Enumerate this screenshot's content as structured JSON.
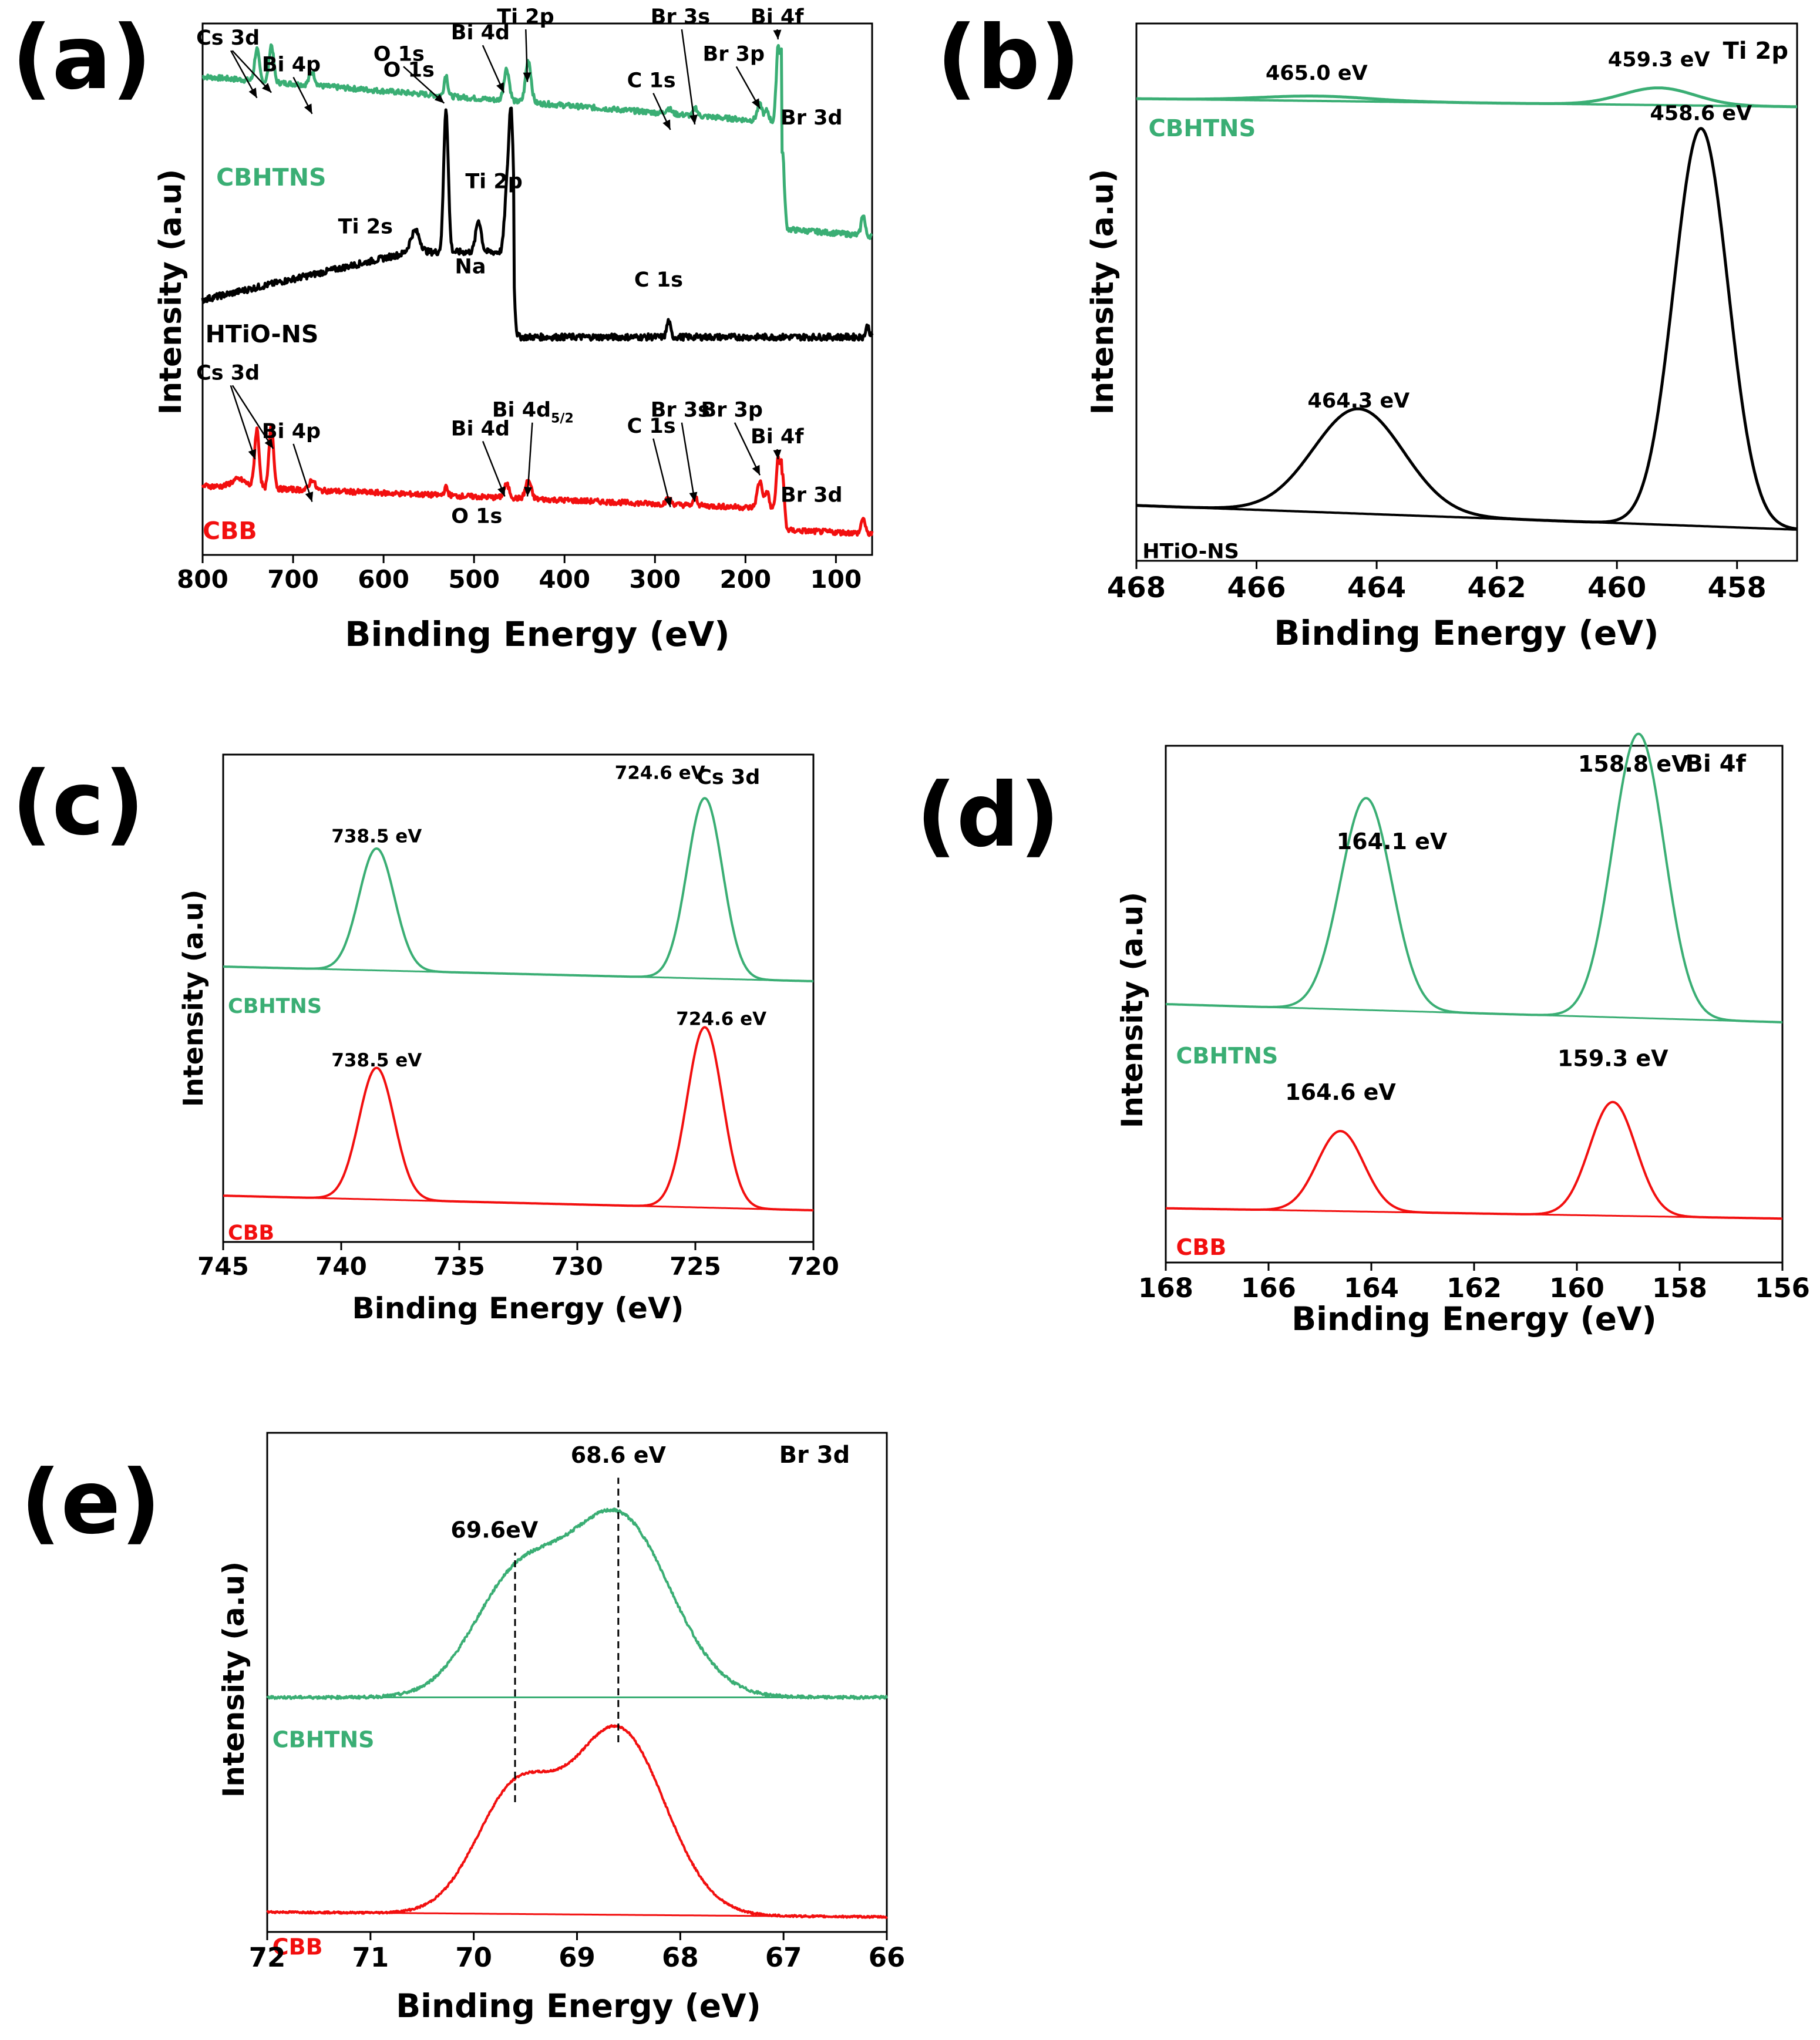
{
  "colors": {
    "cbhtns": "#3aae74",
    "htio": "#000000",
    "cbb": "#f20f0f",
    "axis": "#000000"
  },
  "chart_data": [
    {
      "panel": "(a)",
      "type": "line",
      "xlabel": "Binding Energy (eV)",
      "ylabel": "Intensity (a.u)",
      "xlim": [
        800,
        60
      ],
      "ylim": [
        0,
        100
      ],
      "xticks": [
        800,
        700,
        600,
        500,
        400,
        300,
        200,
        100
      ],
      "series": [
        {
          "name": "CBHTNS",
          "color": "#3aae74",
          "baseline": 80,
          "slope": 10,
          "noise": 0.5,
          "peaks": [
            [
              740,
              6,
              2.5
            ],
            [
              724,
              7,
              2.5
            ],
            [
              679,
              2.5,
              3
            ],
            [
              531,
              4,
              2
            ],
            [
              464,
              6,
              3
            ],
            [
              440,
              8,
              3
            ],
            [
              285,
              1,
              3
            ],
            [
              255,
              1.5,
              2
            ],
            [
              184,
              3,
              3
            ],
            [
              176,
              2,
              2
            ],
            [
              164,
              14,
              2
            ],
            [
              159,
              14,
              2
            ],
            [
              70,
              4,
              2
            ]
          ],
          "step": [
            160,
            20
          ]
        },
        {
          "name": "HTiO-NS",
          "color": "#000000",
          "baseline": 48,
          "slope": 0,
          "noise": 0.6,
          "ramp": [
            800,
            48,
            570,
            57
          ],
          "peaks": [
            [
              565,
              4,
              5
            ],
            [
              531,
              27,
              2.5
            ],
            [
              495,
              6,
              3
            ],
            [
              464,
              10,
              2.5
            ],
            [
              459,
              26,
              2.5
            ],
            [
              285,
              3,
              2
            ],
            [
              65,
              2,
              2
            ]
          ],
          "step": [
            456,
            16
          ]
        },
        {
          "name": "CBB",
          "color": "#f20f0f",
          "baseline": 8,
          "slope": 5,
          "noise": 0.5,
          "peaks": [
            [
              760,
              1.5,
              8
            ],
            [
              740,
              11,
              2.5
            ],
            [
              724,
              12,
              2.5
            ],
            [
              679,
              2,
              3
            ],
            [
              531,
              1.5,
              2
            ],
            [
              464,
              2.5,
              3
            ],
            [
              440,
              3.5,
              3
            ],
            [
              285,
              1,
              3
            ],
            [
              255,
              1.5,
              2
            ],
            [
              184,
              5,
              3
            ],
            [
              176,
              3,
              2
            ],
            [
              164,
              9,
              2
            ],
            [
              159,
              10,
              2
            ],
            [
              70,
              3,
              2
            ]
          ],
          "step": [
            160,
            4
          ]
        }
      ],
      "text_labels": [
        {
          "text": "CBHTNS",
          "x": 785,
          "y": 69.5,
          "color": "#3aae74",
          "size": 41
        },
        {
          "text": "HTiO-NS",
          "x": 797,
          "y": 40,
          "color": "#000000",
          "size": 41
        },
        {
          "text": "CBB",
          "x": 800,
          "y": 3,
          "color": "#f20f0f",
          "size": 41
        },
        {
          "text": "O 1s",
          "x": 572,
          "y": 90,
          "color": "#000000",
          "size": 35
        },
        {
          "text": "Ti 2s",
          "x": 620,
          "y": 60.5,
          "color": "#000000",
          "size": 35
        },
        {
          "text": "Na",
          "x": 504,
          "y": 53,
          "color": "#000000",
          "size": 35
        },
        {
          "text": "Ti 2p",
          "x": 478,
          "y": 69,
          "color": "#000000",
          "size": 35
        },
        {
          "text": "C 1s",
          "x": 296,
          "y": 50.5,
          "color": "#000000",
          "size": 35
        },
        {
          "text": "O 1s",
          "x": 497,
          "y": 6,
          "color": "#000000",
          "size": 35
        }
      ],
      "arrow_labels": [
        {
          "text": "Cs 3d",
          "tx": 772,
          "ty": 96,
          "points": [
            [
              740,
              86
            ],
            [
              724,
              87
            ]
          ]
        },
        {
          "text": "Bi 4p",
          "tx": 702,
          "ty": 91,
          "points": [
            [
              679,
              83
            ]
          ]
        },
        {
          "text": "O 1s",
          "tx": 583,
          "ty": 93,
          "points": [
            [
              533,
              85
            ]
          ]
        },
        {
          "text": "Bi 4d",
          "tx": 493,
          "ty": 97,
          "points": [
            [
              467,
              87
            ]
          ]
        },
        {
          "text": "Ti 2p",
          "tx": 443,
          "ty": 100,
          "points": [
            [
              441,
              89
            ]
          ]
        },
        {
          "text": "C 1s",
          "tx": 304,
          "ty": 88,
          "points": [
            [
              283,
              80
            ]
          ]
        },
        {
          "text": "Br 3s",
          "tx": 272,
          "ty": 100,
          "points": [
            [
              256,
              81
            ]
          ]
        },
        {
          "text": "Br 3p",
          "tx": 213,
          "ty": 93,
          "points": [
            [
              184,
              84
            ]
          ]
        },
        {
          "text": "Bi 4f",
          "tx": 165,
          "ty": 100,
          "points": [
            [
              164,
              97
            ]
          ]
        },
        {
          "text": "Br 3d",
          "tx": 127,
          "ty": 81,
          "points": []
        },
        {
          "text": "Cs 3d",
          "tx": 772,
          "ty": 33,
          "points": [
            [
              742,
              18
            ],
            [
              722,
              20
            ]
          ]
        },
        {
          "text": "Bi 4p",
          "tx": 702,
          "ty": 22,
          "points": [
            [
              679,
              10
            ]
          ]
        },
        {
          "text": "Bi 4d",
          "tx": 493,
          "ty": 22.5,
          "points": [
            [
              466,
              11
            ]
          ]
        },
        {
          "text": "Bi 4d",
          "tx": 435,
          "ty": 26,
          "sub": "5/2",
          "points": [
            [
              441,
              11
            ]
          ]
        },
        {
          "text": "C 1s",
          "tx": 304,
          "ty": 23,
          "points": [
            [
              283,
              9
            ]
          ]
        },
        {
          "text": "Br 3s",
          "tx": 272,
          "ty": 26,
          "points": [
            [
              256,
              10
            ]
          ]
        },
        {
          "text": "Br 3p",
          "tx": 215,
          "ty": 26,
          "points": [
            [
              184,
              15
            ]
          ]
        },
        {
          "text": "Bi 4f",
          "tx": 165,
          "ty": 21,
          "points": [
            [
              164,
              18
            ]
          ]
        },
        {
          "text": "Br 3d",
          "tx": 127,
          "ty": 10,
          "points": []
        }
      ]
    },
    {
      "panel": "(b)",
      "type": "line",
      "title": "Ti 2p",
      "xlabel": "Binding Energy (eV)",
      "ylabel": "Intensity (a.u)",
      "xlim": [
        468,
        457
      ],
      "ylim": [
        0,
        100
      ],
      "xticks": [
        468,
        466,
        464,
        462,
        460,
        458
      ],
      "series": [
        {
          "name": "CBHTNS",
          "color": "#3aae74",
          "baseline": 84.5,
          "slope": 1.5,
          "peaks": [
            [
              465.0,
              0.9,
              0.9
            ],
            [
              459.3,
              3.2,
              0.6
            ]
          ]
        },
        {
          "name": "HTiO-NS",
          "color": "#000000",
          "baseline": 5.8,
          "slope": 4.5,
          "peaks": [
            [
              464.3,
              19.5,
              0.75
            ],
            [
              458.6,
              74,
              0.45
            ]
          ]
        }
      ],
      "text_labels": [
        {
          "text": "CBHTNS",
          "x": 467.8,
          "y": 79,
          "color": "#3aae74",
          "size": 40
        },
        {
          "text": "HTiO-NS",
          "x": 467.9,
          "y": 0.5,
          "color": "#000000",
          "size": 35
        },
        {
          "text": "465.0 eV",
          "x": 465.0,
          "y": 89.5,
          "color": "#000000",
          "size": 35
        },
        {
          "text": "459.3 eV",
          "x": 459.3,
          "y": 92,
          "color": "#000000",
          "size": 35
        },
        {
          "text": "458.6 eV",
          "x": 458.6,
          "y": 82,
          "color": "#000000",
          "size": 35
        },
        {
          "text": "464.3 eV",
          "x": 464.3,
          "y": 28.5,
          "color": "#000000",
          "size": 35
        }
      ]
    },
    {
      "panel": "(c)",
      "type": "line",
      "title": "Cs 3d",
      "xlabel": "Binding Energy (eV)",
      "ylabel": "Intensity (a.u)",
      "xlim": [
        745,
        720
      ],
      "ylim": [
        0,
        100
      ],
      "xticks": [
        745,
        740,
        735,
        730,
        725,
        720
      ],
      "series": [
        {
          "name": "CBHTNS",
          "color": "#3aae74",
          "baseline": 53.5,
          "slope": 3,
          "peaks": [
            [
              738.5,
              25,
              0.75
            ],
            [
              724.6,
              37,
              0.75
            ]
          ]
        },
        {
          "name": "CBB",
          "color": "#f20f0f",
          "baseline": 6.5,
          "slope": 3,
          "peaks": [
            [
              738.5,
              27,
              0.75
            ],
            [
              724.6,
              37,
              0.75
            ]
          ]
        }
      ],
      "text_labels": [
        {
          "text": "CBHTNS",
          "x": 744.8,
          "y": 47,
          "color": "#3aae74",
          "size": 35
        },
        {
          "text": "CBB",
          "x": 744.8,
          "y": 0.5,
          "color": "#f20f0f",
          "size": 35
        },
        {
          "text": "Cs 3d",
          "x": 723.6,
          "y": 94,
          "color": "#000000",
          "size": 35
        },
        {
          "text": "738.5 eV",
          "x": 738.5,
          "y": 82,
          "color": "#000000",
          "size": 31
        },
        {
          "text": "724.6 eV",
          "x": 726.5,
          "y": 95,
          "color": "#000000",
          "size": 31
        },
        {
          "text": "738.5 eV",
          "x": 738.5,
          "y": 36,
          "color": "#000000",
          "size": 31
        },
        {
          "text": "724.6 eV",
          "x": 723.9,
          "y": 44.5,
          "color": "#000000",
          "size": 31
        }
      ]
    },
    {
      "panel": "(d)",
      "type": "line",
      "title": "Bi 4f",
      "xlabel": "Binding Energy (eV)",
      "ylabel": "Intensity (a.u)",
      "xlim": [
        168,
        156
      ],
      "ylim": [
        0,
        100
      ],
      "xticks": [
        168,
        166,
        164,
        162,
        160,
        158,
        156
      ],
      "series": [
        {
          "name": "CBHTNS",
          "color": "#3aae74",
          "baseline": 46.5,
          "slope": 3.5,
          "peaks": [
            [
              164.1,
              41,
              0.5
            ],
            [
              158.8,
              55,
              0.5
            ]
          ]
        },
        {
          "name": "CBB",
          "color": "#f20f0f",
          "baseline": 8.5,
          "slope": 2,
          "peaks": [
            [
              164.6,
              15.5,
              0.45
            ],
            [
              159.3,
              22,
              0.45
            ]
          ]
        }
      ],
      "text_labels": [
        {
          "text": "CBHTNS",
          "x": 167.8,
          "y": 38.5,
          "color": "#3aae74",
          "size": 38
        },
        {
          "text": "CBB",
          "x": 167.8,
          "y": 1.5,
          "color": "#f20f0f",
          "size": 38
        },
        {
          "text": "Bi 4f",
          "x": 157.3,
          "y": 95,
          "color": "#000000",
          "size": 40
        },
        {
          "text": "164.1 eV",
          "x": 163.6,
          "y": 80,
          "color": "#000000",
          "size": 38
        },
        {
          "text": "158.8 eV",
          "x": 158.9,
          "y": 95,
          "color": "#000000",
          "size": 38
        },
        {
          "text": "164.6 eV",
          "x": 164.6,
          "y": 31.5,
          "color": "#000000",
          "size": 38
        },
        {
          "text": "159.3 eV",
          "x": 159.3,
          "y": 38,
          "color": "#000000",
          "size": 38
        }
      ]
    },
    {
      "panel": "(e)",
      "type": "line",
      "title": "Br 3d",
      "xlabel": "Binding Energy (eV)",
      "ylabel": "Intensity (a.u)",
      "xlim": [
        72,
        66
      ],
      "ylim": [
        0,
        100
      ],
      "xticks": [
        72,
        71,
        70,
        69,
        68,
        67,
        66
      ],
      "series": [
        {
          "name": "CBHTNS",
          "color": "#3aae74",
          "baseline": 47,
          "slope": 0,
          "noise": 0.3,
          "peaks": [
            [
              69.6,
              22,
              0.42
            ],
            [
              68.6,
              36,
              0.5
            ]
          ]
        },
        {
          "name": "CBB",
          "color": "#f20f0f",
          "baseline": 3,
          "slope": 1,
          "noise": 0.2,
          "peaks": [
            [
              69.6,
              24,
              0.38
            ],
            [
              68.6,
              37,
              0.45
            ]
          ]
        }
      ],
      "vlines": [
        [
          69.6,
          26,
          76
        ],
        [
          68.6,
          38,
          91
        ]
      ],
      "text_labels": [
        {
          "text": "CBHTNS",
          "x": 71.95,
          "y": 37,
          "color": "#3aae74",
          "size": 38
        },
        {
          "text": "CBB",
          "x": 71.95,
          "y": -4.5,
          "color": "#f20f0f",
          "size": 38
        },
        {
          "text": "Br 3d",
          "x": 66.7,
          "y": 94,
          "color": "#000000",
          "size": 40
        },
        {
          "text": "69.6eV",
          "x": 69.8,
          "y": 79,
          "color": "#000000",
          "size": 38
        },
        {
          "text": "68.6 eV",
          "x": 68.6,
          "y": 94,
          "color": "#000000",
          "size": 38
        }
      ]
    }
  ]
}
